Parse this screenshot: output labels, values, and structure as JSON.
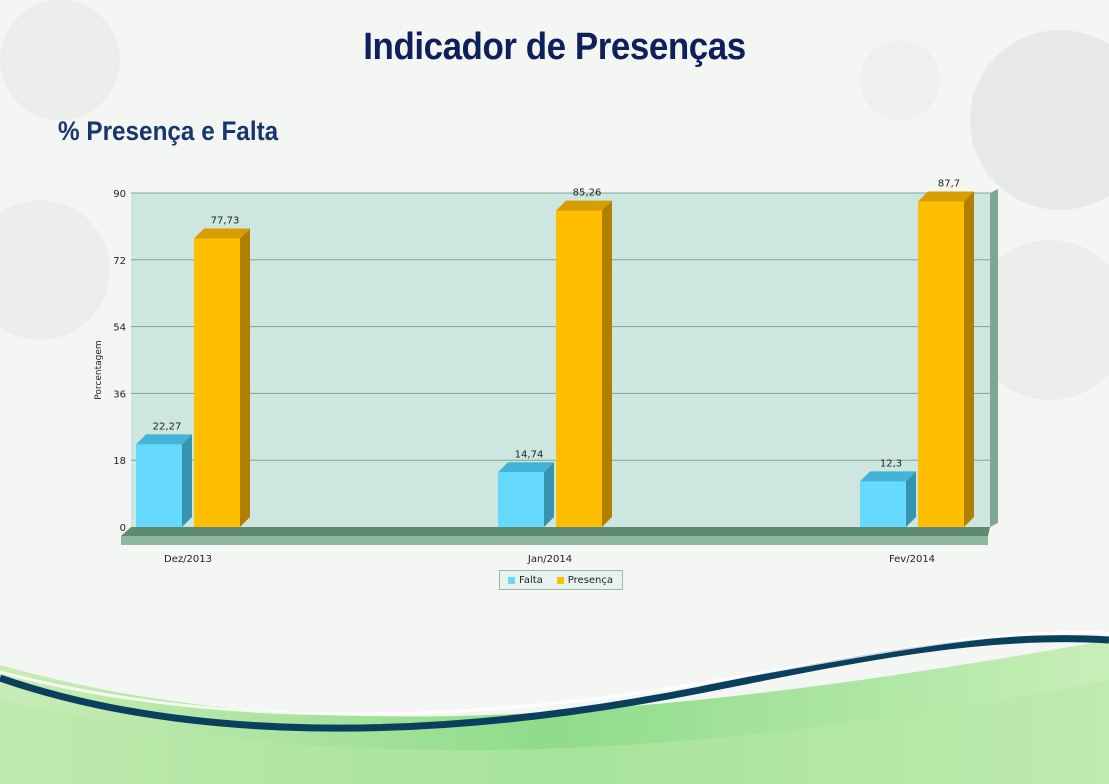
{
  "page": {
    "title": "Indicador de Presenças",
    "subtitle": "% Presença e Falta"
  },
  "colors": {
    "falta": "#66d9ff",
    "presenca": "#ffbf00",
    "plot_bg": "#cde6df",
    "floor": "#8fb89e"
  },
  "chart_data": {
    "type": "bar",
    "ylabel": "Porcentagem",
    "xlabel": "",
    "ylim": [
      0,
      90
    ],
    "yticks": [
      0,
      18,
      36,
      54,
      72,
      90
    ],
    "grid": true,
    "legend_position": "bottom",
    "categories": [
      "Dez/2013",
      "Jan/2014",
      "Fev/2014"
    ],
    "series": [
      {
        "name": "Falta",
        "values": [
          22.27,
          14.74,
          12.3
        ],
        "labels": [
          "22,27",
          "14,74",
          "12,3"
        ]
      },
      {
        "name": "Presença",
        "values": [
          77.73,
          85.26,
          87.7
        ],
        "labels": [
          "77,73",
          "85,26",
          "87,7"
        ]
      }
    ]
  }
}
